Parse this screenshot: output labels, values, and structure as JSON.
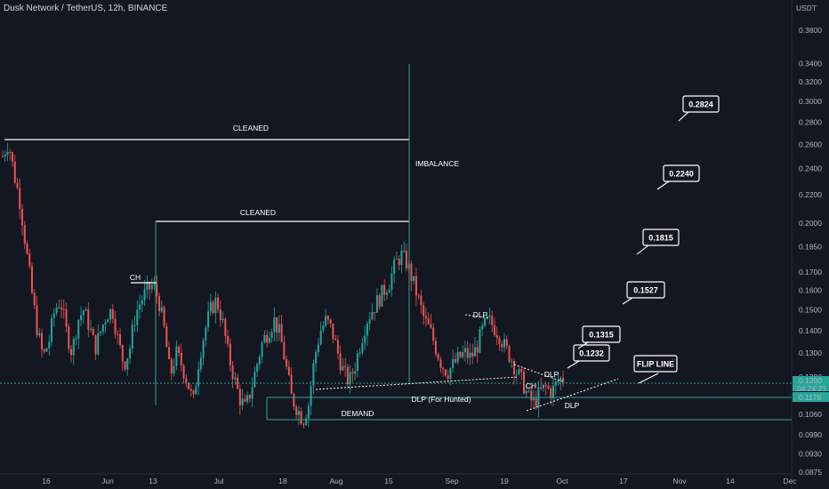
{
  "header": {
    "title": "Dusk Network / TetherUS, 12h, BINANCE"
  },
  "axis": {
    "currency": "USDT"
  },
  "chart_data": {
    "type": "candlestick",
    "symbol": "Dusk Network / TetherUS",
    "interval": "12h",
    "exchange": "BINANCE",
    "y_scale": "log",
    "ylim": [
      0.0825,
      0.41
    ],
    "y_ticks": [
      "0.3800",
      "0.3400",
      "0.3200",
      "0.3000",
      "0.2800",
      "0.2600",
      "0.2400",
      "0.2200",
      "0.2000",
      "0.1850",
      "0.1700",
      "0.1600",
      "0.1500",
      "0.1400",
      "0.1300",
      "0.1200",
      "0.1130",
      "0.1060",
      "0.0990",
      "0.0930",
      "0.0875"
    ],
    "x_ticks": [
      "16",
      "Jun",
      "13",
      "Jul",
      "18",
      "Aug",
      "15",
      "Sep",
      "19",
      "Oct",
      "17",
      "Nov",
      "14",
      "Dec"
    ],
    "price_path": [
      0.25,
      0.262,
      0.235,
      0.215,
      0.185,
      0.16,
      0.14,
      0.128,
      0.135,
      0.15,
      0.155,
      0.14,
      0.13,
      0.145,
      0.15,
      0.142,
      0.132,
      0.14,
      0.148,
      0.15,
      0.135,
      0.125,
      0.132,
      0.148,
      0.155,
      0.16,
      0.163,
      0.155,
      0.14,
      0.12,
      0.13,
      0.125,
      0.118,
      0.11,
      0.128,
      0.14,
      0.15,
      0.155,
      0.145,
      0.13,
      0.12,
      0.112,
      0.108,
      0.115,
      0.125,
      0.135,
      0.14,
      0.145,
      0.138,
      0.125,
      0.112,
      0.108,
      0.104,
      0.11,
      0.128,
      0.14,
      0.145,
      0.14,
      0.13,
      0.122,
      0.118,
      0.125,
      0.135,
      0.145,
      0.15,
      0.155,
      0.16,
      0.165,
      0.175,
      0.18,
      0.175,
      0.165,
      0.155,
      0.145,
      0.14,
      0.132,
      0.125,
      0.122,
      0.125,
      0.128,
      0.13,
      0.128,
      0.132,
      0.14,
      0.145,
      0.142,
      0.138,
      0.132,
      0.128,
      0.122,
      0.118,
      0.112,
      0.11,
      0.114,
      0.116,
      0.114,
      0.118,
      0.12
    ],
    "current_price": "0.1200",
    "current_time": "04:24:21",
    "level_price": "0.1178",
    "levels": [
      {
        "label": "CLEANED",
        "price": 0.262
      },
      {
        "label": "CLEANED",
        "price": 0.2
      },
      {
        "label": "CH",
        "price": 0.163
      },
      {
        "label": "DLP (For Hunted)",
        "price": 0.1178
      },
      {
        "label": "DEMAND",
        "price": 0.1055
      }
    ],
    "annotations": [
      "IMBALANCE",
      "DLP",
      "DLP",
      "DLP",
      "CH",
      "FLIP LINE"
    ],
    "targets": [
      "0.1232",
      "0.1315",
      "0.1527",
      "0.1815",
      "0.2240",
      "0.2824"
    ]
  }
}
